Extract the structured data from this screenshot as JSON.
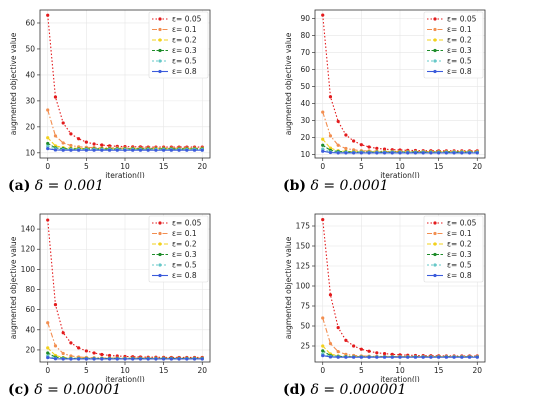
{
  "series_styles": [
    {
      "color": "#e31a1c",
      "dash": "1.5,2",
      "marker": "circle"
    },
    {
      "color": "#f28e50",
      "dash": "5,2,1.5,2",
      "marker": "circle"
    },
    {
      "color": "#f2d11d",
      "dash": "4,2",
      "marker": "circle"
    },
    {
      "color": "#1e8c2a",
      "dash": "3,1.5",
      "marker": "circle"
    },
    {
      "color": "#66c8c8",
      "dash": "2,2",
      "marker": "circle"
    },
    {
      "color": "#3b5bdb",
      "dash": "",
      "marker": "circle"
    }
  ],
  "chart_data": [
    {
      "type": "line",
      "caption_label": "(a)",
      "caption_text": "δ = 0.001",
      "xlabel": "iteration(l)",
      "ylabel": "augmented objective value",
      "xlim": [
        -1,
        21
      ],
      "ylim": [
        8,
        65
      ],
      "xticks": [
        0,
        5,
        10,
        15,
        20
      ],
      "yticks": [
        10,
        20,
        30,
        40,
        50,
        60
      ],
      "legend_position": "top-right",
      "grid": true,
      "x": [
        0,
        1,
        2,
        3,
        4,
        5,
        6,
        7,
        8,
        9,
        10,
        11,
        12,
        13,
        14,
        15,
        16,
        17,
        18,
        19,
        20
      ],
      "series": [
        {
          "name": "ε= 0.05",
          "values": [
            63,
            31.5,
            21.5,
            17.3,
            15.4,
            14.1,
            13.4,
            13.0,
            12.7,
            12.5,
            12.4,
            12.3,
            12.3,
            12.2,
            12.2,
            12.2,
            12.2,
            12.2,
            12.2,
            12.2,
            12.2
          ]
        },
        {
          "name": "ε= 0.1",
          "values": [
            26.5,
            16.5,
            13.8,
            12.8,
            12.3,
            12.1,
            12.0,
            11.9,
            11.9,
            11.9,
            11.8,
            11.8,
            11.8,
            11.8,
            11.8,
            11.8,
            11.8,
            11.8,
            11.8,
            11.8,
            11.8
          ]
        },
        {
          "name": "ε= 0.2",
          "values": [
            15.8,
            12.7,
            12.0,
            11.8,
            11.7,
            11.6,
            11.6,
            11.6,
            11.6,
            11.6,
            11.6,
            11.6,
            11.6,
            11.6,
            11.6,
            11.6,
            11.6,
            11.6,
            11.6,
            11.6,
            11.6
          ]
        },
        {
          "name": "ε= 0.3",
          "values": [
            13.6,
            11.9,
            11.6,
            11.5,
            11.5,
            11.5,
            11.5,
            11.5,
            11.5,
            11.5,
            11.5,
            11.5,
            11.5,
            11.5,
            11.5,
            11.5,
            11.5,
            11.5,
            11.5,
            11.5,
            11.5
          ]
        },
        {
          "name": "ε= 0.5",
          "values": [
            12.5,
            11.5,
            11.3,
            11.3,
            11.3,
            11.3,
            11.3,
            11.3,
            11.3,
            11.3,
            11.3,
            11.3,
            11.3,
            11.3,
            11.3,
            11.3,
            11.3,
            11.3,
            11.3,
            11.3,
            11.3
          ]
        },
        {
          "name": "ε= 0.8",
          "values": [
            11.6,
            11.1,
            11.0,
            11.0,
            11.0,
            11.0,
            11.0,
            11.0,
            11.0,
            11.0,
            11.0,
            11.0,
            11.0,
            11.0,
            11.0,
            11.0,
            11.0,
            11.0,
            11.0,
            11.0,
            11.0
          ]
        }
      ]
    },
    {
      "type": "line",
      "caption_label": "(b)",
      "caption_text": "δ = 0.0001",
      "xlabel": "iteration(l)",
      "ylabel": "augmented objective value",
      "xlim": [
        -1,
        21
      ],
      "ylim": [
        8,
        95
      ],
      "xticks": [
        0,
        5,
        10,
        15,
        20
      ],
      "yticks": [
        10,
        20,
        30,
        40,
        50,
        60,
        70,
        80,
        90
      ],
      "legend_position": "top-right",
      "grid": true,
      "x": [
        0,
        1,
        2,
        3,
        4,
        5,
        6,
        7,
        8,
        9,
        10,
        11,
        12,
        13,
        14,
        15,
        16,
        17,
        18,
        19,
        20
      ],
      "series": [
        {
          "name": "ε= 0.05",
          "values": [
            92,
            44,
            29.5,
            21.5,
            18.0,
            15.8,
            14.5,
            13.7,
            13.2,
            12.9,
            12.7,
            12.5,
            12.4,
            12.3,
            12.3,
            12.2,
            12.2,
            12.2,
            12.2,
            12.2,
            12.2
          ]
        },
        {
          "name": "ε= 0.1",
          "values": [
            35,
            21.0,
            15.5,
            13.6,
            12.8,
            12.3,
            12.1,
            12.0,
            11.9,
            11.9,
            11.8,
            11.8,
            11.8,
            11.8,
            11.8,
            11.8,
            11.8,
            11.8,
            11.8,
            11.8,
            11.8
          ]
        },
        {
          "name": "ε= 0.2",
          "values": [
            19,
            13.8,
            12.3,
            11.9,
            11.7,
            11.6,
            11.6,
            11.6,
            11.6,
            11.6,
            11.6,
            11.6,
            11.6,
            11.6,
            11.6,
            11.6,
            11.6,
            11.6,
            11.6,
            11.6,
            11.6
          ]
        },
        {
          "name": "ε= 0.3",
          "values": [
            15.5,
            12.5,
            11.8,
            11.6,
            11.5,
            11.5,
            11.5,
            11.5,
            11.5,
            11.5,
            11.5,
            11.5,
            11.5,
            11.5,
            11.5,
            11.5,
            11.5,
            11.5,
            11.5,
            11.5,
            11.5
          ]
        },
        {
          "name": "ε= 0.5",
          "values": [
            13.2,
            11.6,
            11.4,
            11.3,
            11.3,
            11.3,
            11.3,
            11.3,
            11.3,
            11.3,
            11.3,
            11.3,
            11.3,
            11.3,
            11.3,
            11.3,
            11.3,
            11.3,
            11.3,
            11.3,
            11.3
          ]
        },
        {
          "name": "ε= 0.8",
          "values": [
            12.0,
            11.2,
            11.0,
            11.0,
            11.0,
            11.0,
            11.0,
            11.0,
            11.0,
            11.0,
            11.0,
            11.0,
            11.0,
            11.0,
            11.0,
            11.0,
            11.0,
            11.0,
            11.0,
            11.0,
            11.0
          ]
        }
      ]
    },
    {
      "type": "line",
      "caption_label": "(c)",
      "caption_text": "δ = 0.00001",
      "xlabel": "iteration(l)",
      "ylabel": "augmented objective value",
      "xlim": [
        -1,
        21
      ],
      "ylim": [
        8,
        155
      ],
      "xticks": [
        0,
        5,
        10,
        15,
        20
      ],
      "yticks": [
        20,
        40,
        60,
        80,
        100,
        120,
        140
      ],
      "legend_position": "top-right",
      "grid": true,
      "x": [
        0,
        1,
        2,
        3,
        4,
        5,
        6,
        7,
        8,
        9,
        10,
        11,
        12,
        13,
        14,
        15,
        16,
        17,
        18,
        19,
        20
      ],
      "series": [
        {
          "name": "ε= 0.05",
          "values": [
            149,
            65,
            37,
            27,
            22,
            19,
            17,
            15.5,
            14.5,
            14.0,
            13.5,
            13.2,
            13.0,
            12.8,
            12.7,
            12.6,
            12.5,
            12.5,
            12.5,
            12.5,
            12.5
          ]
        },
        {
          "name": "ε= 0.1",
          "values": [
            47,
            24,
            16.5,
            14.0,
            13.0,
            12.5,
            12.2,
            12.0,
            11.9,
            11.9,
            11.8,
            11.8,
            11.8,
            11.8,
            11.8,
            11.8,
            11.8,
            11.8,
            11.8,
            11.8,
            11.8
          ]
        },
        {
          "name": "ε= 0.2",
          "values": [
            22,
            14.5,
            12.5,
            11.9,
            11.7,
            11.6,
            11.6,
            11.6,
            11.6,
            11.6,
            11.6,
            11.6,
            11.6,
            11.6,
            11.6,
            11.6,
            11.6,
            11.6,
            11.6,
            11.6,
            11.6
          ]
        },
        {
          "name": "ε= 0.3",
          "values": [
            17,
            12.8,
            11.9,
            11.6,
            11.5,
            11.5,
            11.5,
            11.5,
            11.5,
            11.5,
            11.5,
            11.5,
            11.5,
            11.5,
            11.5,
            11.5,
            11.5,
            11.5,
            11.5,
            11.5,
            11.5
          ]
        },
        {
          "name": "ε= 0.5",
          "values": [
            14,
            11.8,
            11.4,
            11.3,
            11.3,
            11.3,
            11.3,
            11.3,
            11.3,
            11.3,
            11.3,
            11.3,
            11.3,
            11.3,
            11.3,
            11.3,
            11.3,
            11.3,
            11.3,
            11.3,
            11.3
          ]
        },
        {
          "name": "ε= 0.8",
          "values": [
            12.4,
            11.2,
            11.0,
            11.0,
            11.0,
            11.0,
            11.0,
            11.0,
            11.0,
            11.0,
            11.0,
            11.0,
            11.0,
            11.0,
            11.0,
            11.0,
            11.0,
            11.0,
            11.0,
            11.0,
            11.0
          ]
        }
      ]
    },
    {
      "type": "line",
      "caption_label": "(d)",
      "caption_text": "δ = 0.000001",
      "xlabel": "iteration(l)",
      "ylabel": "augmented objective value",
      "xlim": [
        -1,
        21
      ],
      "ylim": [
        5,
        190
      ],
      "xticks": [
        0,
        5,
        10,
        15,
        20
      ],
      "yticks": [
        25,
        50,
        75,
        100,
        125,
        150,
        175
      ],
      "legend_position": "top-right",
      "grid": true,
      "x": [
        0,
        1,
        2,
        3,
        4,
        5,
        6,
        7,
        8,
        9,
        10,
        11,
        12,
        13,
        14,
        15,
        16,
        17,
        18,
        19,
        20
      ],
      "series": [
        {
          "name": "ε= 0.05",
          "values": [
            183,
            89,
            48,
            32,
            25,
            21,
            18.5,
            16.5,
            15.5,
            14.5,
            14.0,
            13.5,
            13.2,
            13.0,
            12.8,
            12.7,
            12.6,
            12.5,
            12.5,
            12.5,
            12.5
          ]
        },
        {
          "name": "ε= 0.1",
          "values": [
            60,
            28,
            18,
            14.5,
            13.2,
            12.6,
            12.2,
            12.0,
            11.9,
            11.9,
            11.8,
            11.8,
            11.8,
            11.8,
            11.8,
            11.8,
            11.8,
            11.8,
            11.8,
            11.8,
            11.8
          ]
        },
        {
          "name": "ε= 0.2",
          "values": [
            25,
            15,
            12.6,
            12.0,
            11.8,
            11.7,
            11.6,
            11.6,
            11.6,
            11.6,
            11.6,
            11.6,
            11.6,
            11.6,
            11.6,
            11.6,
            11.6,
            11.6,
            11.6,
            11.6,
            11.6
          ]
        },
        {
          "name": "ε= 0.3",
          "values": [
            19,
            13,
            12.0,
            11.7,
            11.5,
            11.5,
            11.5,
            11.5,
            11.5,
            11.5,
            11.5,
            11.5,
            11.5,
            11.5,
            11.5,
            11.5,
            11.5,
            11.5,
            11.5,
            11.5,
            11.5
          ]
        },
        {
          "name": "ε= 0.5",
          "values": [
            15,
            12,
            11.5,
            11.3,
            11.3,
            11.3,
            11.3,
            11.3,
            11.3,
            11.3,
            11.3,
            11.3,
            11.3,
            11.3,
            11.3,
            11.3,
            11.3,
            11.3,
            11.3,
            11.3,
            11.3
          ]
        },
        {
          "name": "ε= 0.8",
          "values": [
            13,
            11.3,
            11.0,
            11.0,
            11.0,
            11.0,
            11.0,
            11.0,
            11.0,
            11.0,
            11.0,
            11.0,
            11.0,
            11.0,
            11.0,
            11.0,
            11.0,
            11.0,
            11.0,
            11.0,
            11.0
          ]
        }
      ]
    }
  ]
}
